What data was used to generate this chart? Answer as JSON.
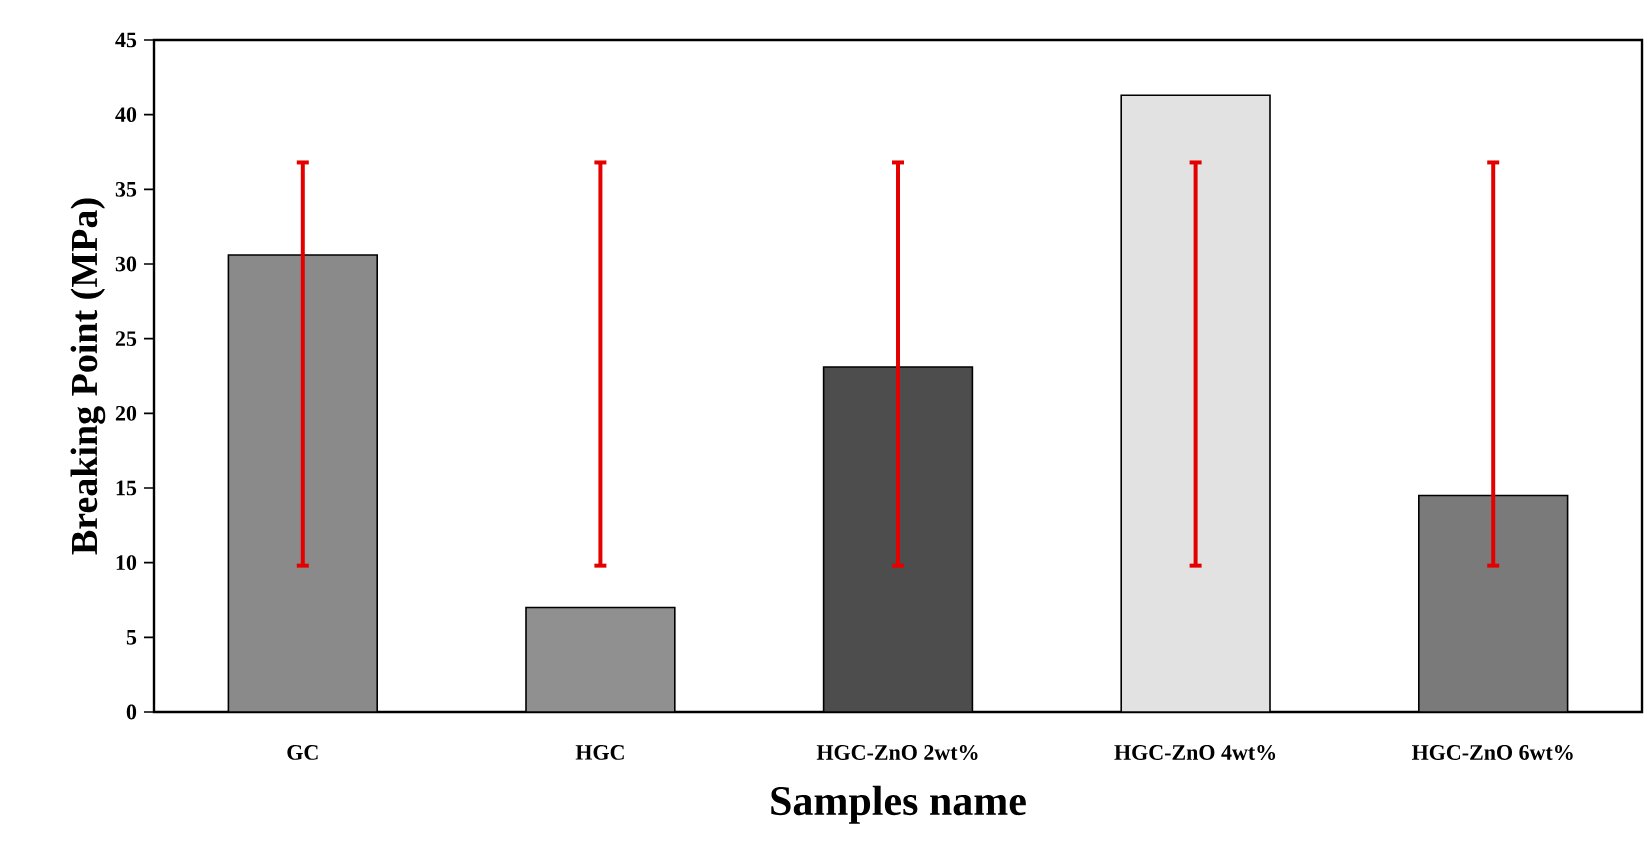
{
  "chart_data": {
    "type": "bar",
    "xlabel": "Samples name",
    "ylabel": "Breaking Point (MPa)",
    "categories": [
      "GC",
      "HGC",
      "HGC-ZnO 2wt%",
      "HGC-ZnO 4wt%",
      "HGC-ZnO 6wt%"
    ],
    "values": [
      30.6,
      7.0,
      23.1,
      41.3,
      14.5
    ],
    "colors": [
      "#8a8a8a",
      "#909090",
      "#4d4d4d",
      "#e2e2e2",
      "#7a7a7a"
    ],
    "errors": [
      [
        9.8,
        36.8
      ],
      [
        9.8,
        36.8
      ],
      [
        9.8,
        36.8
      ],
      [
        9.8,
        36.8
      ],
      [
        9.8,
        36.8
      ]
    ],
    "ylim": [
      0,
      45
    ],
    "yticks": [
      0,
      5,
      10,
      15,
      20,
      25,
      30,
      35,
      40,
      45
    ],
    "grid": false
  }
}
